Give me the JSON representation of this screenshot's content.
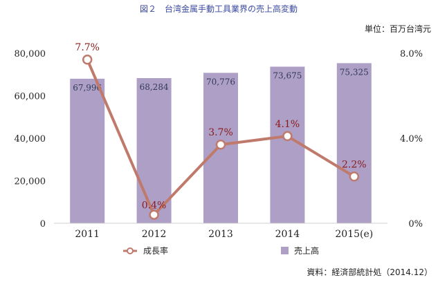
{
  "title": "図２　台湾金属手動工具業界の売上高変動",
  "unit_label": "単位：百万台湾元",
  "source": "資料：経済部統計処（2014.12）",
  "colors": {
    "bar": "#ae9fc7",
    "line": "#c07a6c",
    "marker_fill": "#ffffff",
    "marker_stroke": "#c07a6c",
    "growth_label": "#8a1a1a",
    "title": "#3a4aa0"
  },
  "chart_data": {
    "type": "bar+line",
    "categories": [
      "2011",
      "2012",
      "2013",
      "2014",
      "2015(e)"
    ],
    "series": [
      {
        "name": "売上高",
        "type": "bar",
        "axis": "left",
        "values": [
          67996,
          68284,
          70776,
          73675,
          75325
        ],
        "labels": [
          "67,996",
          "68,284",
          "70,776",
          "73,675",
          "75,325"
        ]
      },
      {
        "name": "成長率",
        "type": "line",
        "axis": "right",
        "values": [
          7.7,
          0.4,
          3.7,
          4.1,
          2.2
        ],
        "labels": [
          "7.7%",
          "0.4%",
          "3.7%",
          "4.1%",
          "2.2%"
        ]
      }
    ],
    "y_left": {
      "ylim": [
        0,
        80000
      ],
      "ticks": [
        0,
        20000,
        40000,
        60000,
        80000
      ],
      "tick_labels": [
        "0",
        "20,000",
        "40,000",
        "60,000",
        "80,000"
      ]
    },
    "y_right": {
      "ylim": [
        0,
        8
      ],
      "ticks": [
        0,
        4,
        8
      ],
      "tick_labels": [
        "0%",
        "4.0%",
        "8.0%"
      ]
    },
    "legend": [
      {
        "name": "成長率",
        "marker": "circle-line"
      },
      {
        "name": "売上高",
        "marker": "square"
      }
    ],
    "legend_position": "bottom",
    "grid": false
  }
}
